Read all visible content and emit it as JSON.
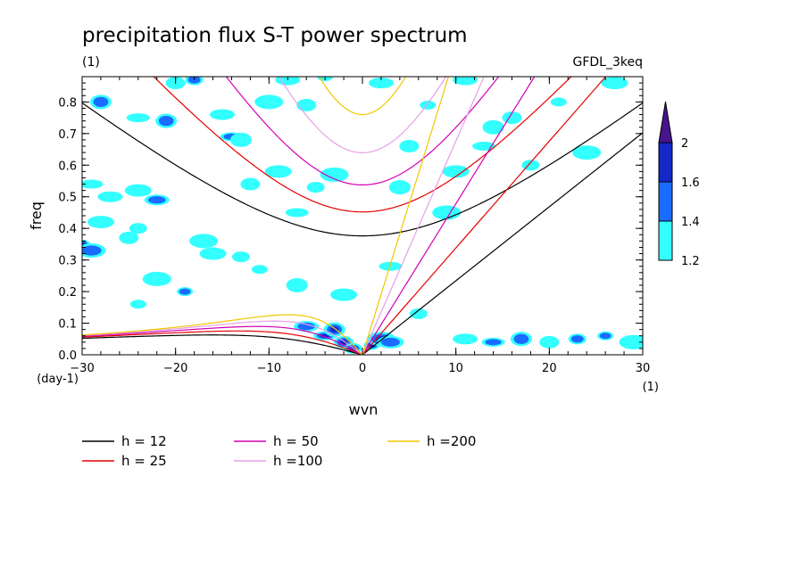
{
  "chart_data": {
    "type": "contour",
    "title": "precipitation flux S-T power spectrum",
    "subtitle_left": "(1)",
    "subtitle_right": "GFDL_3keq",
    "xlabel": "wvn",
    "ylabel": "freq",
    "x_unit": "(1)",
    "y_unit": "(day-1)",
    "xlim": [
      -30,
      30
    ],
    "ylim": [
      0,
      0.88
    ],
    "xticks": [
      -30,
      -20,
      -10,
      0,
      10,
      20,
      30
    ],
    "xtick_labels": [
      "-30",
      "-20",
      "-10",
      "0",
      "10",
      "20",
      "30"
    ],
    "yticks": [
      0,
      0.1,
      0.2,
      0.3,
      0.4,
      0.5,
      0.6,
      0.7,
      0.8
    ],
    "ytick_labels": [
      "0.0",
      "0.1",
      "0.2",
      "0.3",
      "0.4",
      "0.5",
      "0.6",
      "0.7",
      "0.8"
    ],
    "colorbar": {
      "levels": [
        1.2,
        1.4,
        1.6,
        2
      ],
      "labels": [
        "1.2",
        "1.4",
        "1.6",
        "2"
      ],
      "colors": [
        "#33ffff",
        "#1a6bff",
        "#1428c8",
        "#46148c"
      ]
    },
    "dispersion_curves": [
      {
        "label": "h = 12",
        "h": 12,
        "color": "#000000"
      },
      {
        "label": "h = 25",
        "h": 25,
        "color": "#e60000"
      },
      {
        "label": "h = 50",
        "h": 50,
        "color": "#d200b4"
      },
      {
        "label": "h =100",
        "h": 100,
        "color": "#e6a0e6"
      },
      {
        "label": "h =200",
        "h": 200,
        "color": "#f0c800"
      }
    ],
    "contour_blobs": [
      {
        "x": -30,
        "y": 0.35,
        "level": 3
      },
      {
        "x": -29,
        "y": 0.33,
        "level": 2
      },
      {
        "x": -28,
        "y": 0.42,
        "level": 1
      },
      {
        "x": -27,
        "y": 0.5,
        "level": 1
      },
      {
        "x": -29,
        "y": 0.54,
        "level": 1
      },
      {
        "x": -28,
        "y": 0.8,
        "level": 2
      },
      {
        "x": -25,
        "y": 0.37,
        "level": 1
      },
      {
        "x": -24,
        "y": 0.4,
        "level": 1
      },
      {
        "x": -24,
        "y": 0.16,
        "level": 1
      },
      {
        "x": -22,
        "y": 0.24,
        "level": 1
      },
      {
        "x": -24,
        "y": 0.52,
        "level": 1
      },
      {
        "x": -22,
        "y": 0.49,
        "level": 2
      },
      {
        "x": -24,
        "y": 0.75,
        "level": 1
      },
      {
        "x": -21,
        "y": 0.74,
        "level": 2
      },
      {
        "x": -20,
        "y": 0.86,
        "level": 1
      },
      {
        "x": -18,
        "y": 0.87,
        "level": 2
      },
      {
        "x": -19,
        "y": 0.2,
        "level": 2
      },
      {
        "x": -17,
        "y": 0.36,
        "level": 1
      },
      {
        "x": -16,
        "y": 0.32,
        "level": 1
      },
      {
        "x": -15,
        "y": 0.76,
        "level": 1
      },
      {
        "x": -14,
        "y": 0.69,
        "level": 2
      },
      {
        "x": -13,
        "y": 0.68,
        "level": 1
      },
      {
        "x": -12,
        "y": 0.54,
        "level": 1
      },
      {
        "x": -13,
        "y": 0.31,
        "level": 1
      },
      {
        "x": -11,
        "y": 0.27,
        "level": 1
      },
      {
        "x": -10,
        "y": 0.8,
        "level": 1
      },
      {
        "x": -9,
        "y": 0.58,
        "level": 1
      },
      {
        "x": -8,
        "y": 0.87,
        "level": 1
      },
      {
        "x": -7,
        "y": 0.45,
        "level": 1
      },
      {
        "x": -7,
        "y": 0.22,
        "level": 1
      },
      {
        "x": -6,
        "y": 0.79,
        "level": 1
      },
      {
        "x": -5,
        "y": 0.53,
        "level": 1
      },
      {
        "x": -4,
        "y": 0.88,
        "level": 1
      },
      {
        "x": -3,
        "y": 0.57,
        "level": 1
      },
      {
        "x": -2,
        "y": 0.19,
        "level": 1
      },
      {
        "x": 2,
        "y": 0.86,
        "level": 1
      },
      {
        "x": 3,
        "y": 0.28,
        "level": 1
      },
      {
        "x": 4,
        "y": 0.53,
        "level": 1
      },
      {
        "x": 5,
        "y": 0.66,
        "level": 1
      },
      {
        "x": 6,
        "y": 0.13,
        "level": 1
      },
      {
        "x": 7,
        "y": 0.79,
        "level": 1
      },
      {
        "x": 9,
        "y": 0.45,
        "level": 1
      },
      {
        "x": 10,
        "y": 0.58,
        "level": 1
      },
      {
        "x": 11,
        "y": 0.87,
        "level": 1
      },
      {
        "x": 13,
        "y": 0.66,
        "level": 1
      },
      {
        "x": 14,
        "y": 0.72,
        "level": 1
      },
      {
        "x": 16,
        "y": 0.75,
        "level": 1
      },
      {
        "x": 18,
        "y": 0.6,
        "level": 1
      },
      {
        "x": 21,
        "y": 0.8,
        "level": 1
      },
      {
        "x": 24,
        "y": 0.64,
        "level": 1
      },
      {
        "x": 27,
        "y": 0.86,
        "level": 1
      },
      {
        "x": -6,
        "y": 0.09,
        "level": 2
      },
      {
        "x": -4,
        "y": 0.06,
        "level": 3
      },
      {
        "x": -3,
        "y": 0.08,
        "level": 3
      },
      {
        "x": -2,
        "y": 0.04,
        "level": 3
      },
      {
        "x": -1,
        "y": 0.02,
        "level": 4
      },
      {
        "x": 1,
        "y": 0.03,
        "level": 3
      },
      {
        "x": 2,
        "y": 0.05,
        "level": 3
      },
      {
        "x": 3,
        "y": 0.04,
        "level": 2
      },
      {
        "x": 11,
        "y": 0.05,
        "level": 1
      },
      {
        "x": 14,
        "y": 0.04,
        "level": 2
      },
      {
        "x": 17,
        "y": 0.05,
        "level": 2
      },
      {
        "x": 20,
        "y": 0.04,
        "level": 1
      },
      {
        "x": 23,
        "y": 0.05,
        "level": 2
      },
      {
        "x": 26,
        "y": 0.06,
        "level": 2
      },
      {
        "x": 29,
        "y": 0.04,
        "level": 1
      }
    ]
  }
}
